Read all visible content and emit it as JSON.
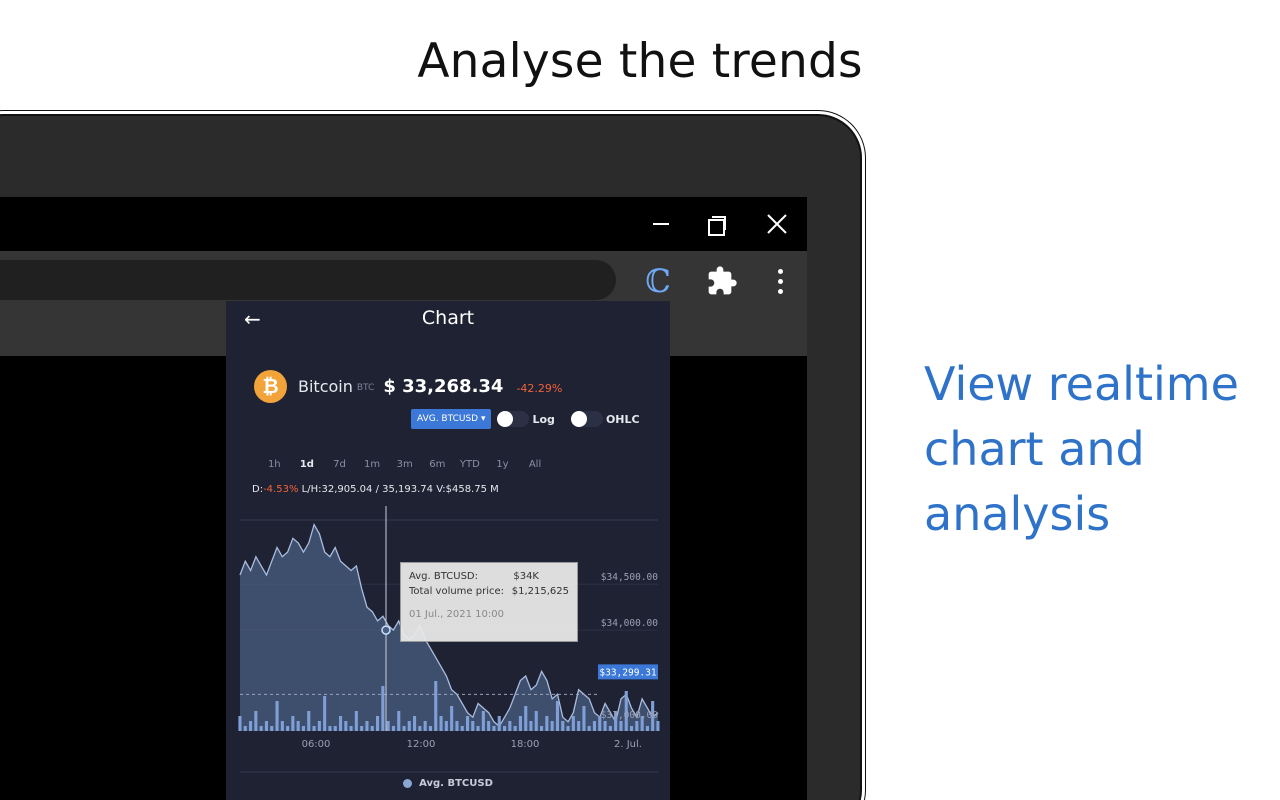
{
  "headline": "Analyse the trends",
  "tagline": [
    "View realtime",
    "chart and",
    "analysis"
  ],
  "popup": {
    "title": "Chart",
    "coin_name": "Bitcoin",
    "coin_symbol": "BTC",
    "price": "$ 33,268.34",
    "change": "-42.29%",
    "select_label": "AVG. BTCUSD",
    "log_label": "Log",
    "ohlc_label": "OHLC",
    "ranges": [
      "1h",
      "1d",
      "7d",
      "1m",
      "3m",
      "6m",
      "YTD",
      "1y",
      "All"
    ],
    "active_range": "1d",
    "stats": {
      "d_label": "D:",
      "d_value": "-4.53%",
      "lh_label": "L/H:",
      "lh_value": "32,905.04 / 35,193.74",
      "v_label": "V:",
      "v_value": "$458.75 M"
    },
    "tooltip": {
      "series_label": "Avg. BTCUSD:",
      "series_value": "$34K",
      "volume_label": "Total volume price:",
      "volume_value": "$1,215,625",
      "date": "01 Jul., 2021 10:00"
    },
    "legend": "Avg. BTCUSD"
  },
  "colors": {
    "accent": "#3c78d8",
    "negative": "#f0623c",
    "tagline": "#2e73c9",
    "popup_bg": "#1f2232",
    "bitcoin": "#f2a33a"
  },
  "chart_data": {
    "type": "area",
    "series_name": "Avg. BTCUSD",
    "x_labels": [
      "06:00",
      "12:00",
      "18:00",
      "2. Jul."
    ],
    "y_tick_labels": [
      "$34,500.00",
      "$34,000.00",
      "$33,000.00"
    ],
    "current_value_label": "$33,299.31",
    "current_value": 33299.31,
    "ylim": [
      32900,
      35200
    ],
    "y": [
      34600,
      34750,
      34650,
      34800,
      34700,
      34600,
      34750,
      34900,
      34800,
      34850,
      35000,
      34950,
      34850,
      34950,
      35150,
      35050,
      34850,
      34800,
      34900,
      34750,
      34700,
      34650,
      34700,
      34450,
      34250,
      34200,
      34100,
      34150,
      34050,
      34000,
      34100,
      33950,
      33900,
      33950,
      34050,
      33900,
      33800,
      33700,
      33600,
      33500,
      33350,
      33300,
      33200,
      33100,
      33050,
      33200,
      33150,
      33100,
      33000,
      32950,
      33050,
      33150,
      33300,
      33450,
      33500,
      33350,
      33400,
      33550,
      33450,
      33250,
      33300,
      33050,
      33000,
      33100,
      33350,
      33300,
      33250,
      33100,
      33050,
      33200,
      33100,
      33000,
      33250,
      33300,
      33150,
      33050,
      33250,
      33150,
      33050,
      33100
    ],
    "volume": [
      3,
      1,
      2,
      4,
      1,
      2,
      1,
      6,
      2,
      1,
      3,
      2,
      1,
      4,
      1,
      2,
      7,
      1,
      1,
      3,
      2,
      1,
      4,
      1,
      2,
      1,
      3,
      9,
      2,
      1,
      4,
      1,
      2,
      3,
      1,
      2,
      1,
      10,
      3,
      2,
      5,
      2,
      1,
      3,
      2,
      1,
      4,
      2,
      1,
      3,
      1,
      2,
      1,
      3,
      5,
      2,
      4,
      1,
      3,
      2,
      6,
      2,
      1,
      3,
      2,
      5,
      1,
      2,
      3,
      2,
      1,
      4,
      2,
      8,
      1,
      2,
      3,
      1,
      6,
      2
    ]
  }
}
